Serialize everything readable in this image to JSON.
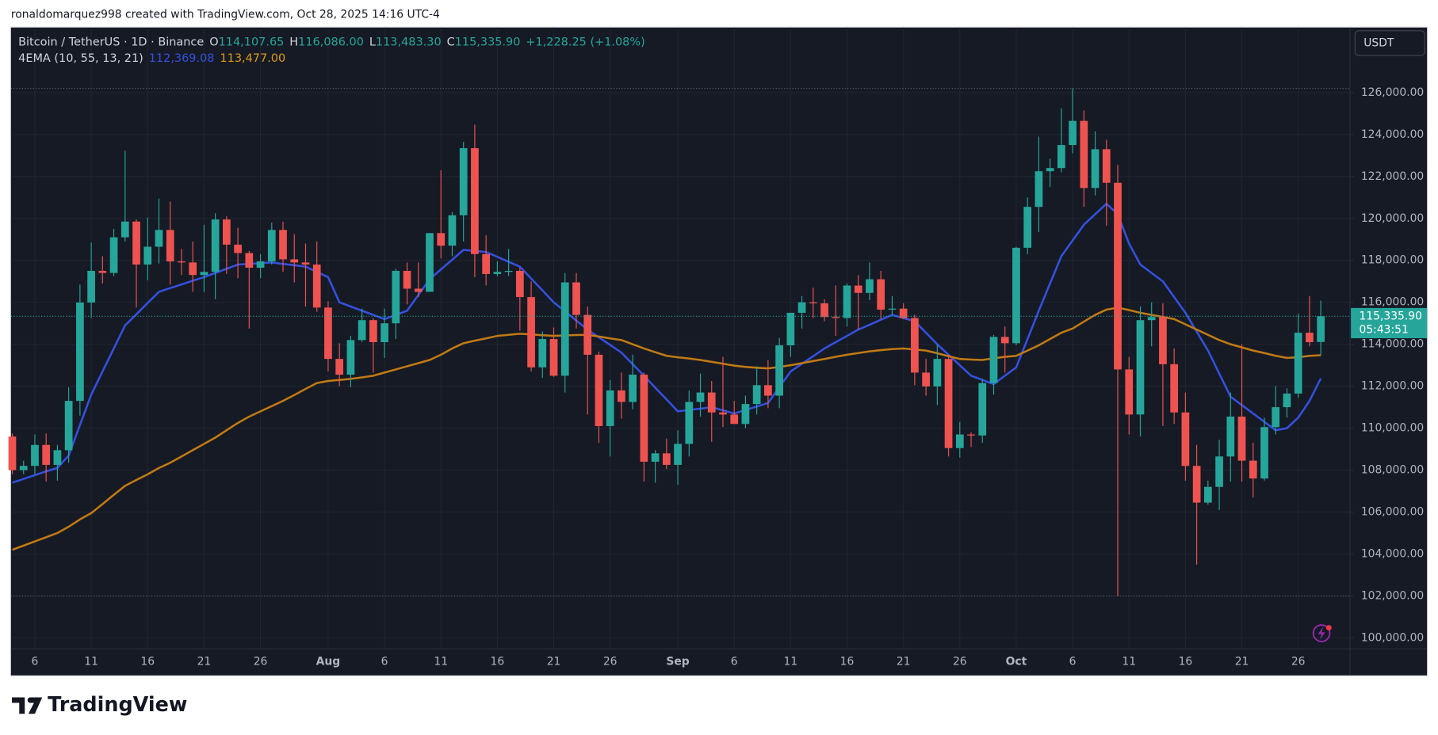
{
  "top_note": "ronaldomarquez998 created with TradingView.com, Oct 28, 2025 14:16 UTC-4",
  "header": {
    "symbol": "Bitcoin / TetherUS · 1D · Binance",
    "o_label": "O",
    "o": "114,107.65",
    "h_label": "H",
    "h": "116,086.00",
    "l_label": "L",
    "l": "113,483.30",
    "c_label": "C",
    "c": "115,335.90",
    "change": "+1,228.25 (+1.08%)"
  },
  "indicator": {
    "label": "4EMA (10, 55, 13, 21)",
    "values_text": [
      "112,369.08",
      "113,477.00"
    ]
  },
  "currency_button": "USDT",
  "last_price_label": "115,335.90",
  "countdown": "05:43:51",
  "footer": "TradingView",
  "chart_data": {
    "type": "candlestick",
    "up_color": "#26a69a",
    "down_color": "#ef5350",
    "grid": true,
    "x": [
      "2025-07-04",
      "2025-07-05",
      "2025-07-06",
      "2025-07-07",
      "2025-07-08",
      "2025-07-09",
      "2025-07-10",
      "2025-07-11",
      "2025-07-12",
      "2025-07-13",
      "2025-07-14",
      "2025-07-15",
      "2025-07-16",
      "2025-07-17",
      "2025-07-18",
      "2025-07-19",
      "2025-07-20",
      "2025-07-21",
      "2025-07-22",
      "2025-07-23",
      "2025-07-24",
      "2025-07-25",
      "2025-07-26",
      "2025-07-27",
      "2025-07-28",
      "2025-07-29",
      "2025-07-30",
      "2025-07-31",
      "2025-08-01",
      "2025-08-02",
      "2025-08-03",
      "2025-08-04",
      "2025-08-05",
      "2025-08-06",
      "2025-08-07",
      "2025-08-08",
      "2025-08-09",
      "2025-08-10",
      "2025-08-11",
      "2025-08-12",
      "2025-08-13",
      "2025-08-14",
      "2025-08-15",
      "2025-08-16",
      "2025-08-17",
      "2025-08-18",
      "2025-08-19",
      "2025-08-20",
      "2025-08-21",
      "2025-08-22",
      "2025-08-23",
      "2025-08-24",
      "2025-08-25",
      "2025-08-26",
      "2025-08-27",
      "2025-08-28",
      "2025-08-29",
      "2025-08-30",
      "2025-08-31",
      "2025-09-01",
      "2025-09-02",
      "2025-09-03",
      "2025-09-04",
      "2025-09-05",
      "2025-09-06",
      "2025-09-07",
      "2025-09-08",
      "2025-09-09",
      "2025-09-10",
      "2025-09-11",
      "2025-09-12",
      "2025-09-13",
      "2025-09-14",
      "2025-09-15",
      "2025-09-16",
      "2025-09-17",
      "2025-09-18",
      "2025-09-19",
      "2025-09-20",
      "2025-09-21",
      "2025-09-22",
      "2025-09-23",
      "2025-09-24",
      "2025-09-25",
      "2025-09-26",
      "2025-09-27",
      "2025-09-28",
      "2025-09-29",
      "2025-09-30",
      "2025-10-01",
      "2025-10-02",
      "2025-10-03",
      "2025-10-04",
      "2025-10-05",
      "2025-10-06",
      "2025-10-07",
      "2025-10-08",
      "2025-10-09",
      "2025-10-10",
      "2025-10-11",
      "2025-10-12",
      "2025-10-13",
      "2025-10-14",
      "2025-10-15",
      "2025-10-16",
      "2025-10-17",
      "2025-10-18",
      "2025-10-19",
      "2025-10-20",
      "2025-10-21",
      "2025-10-22",
      "2025-10-23",
      "2025-10-24",
      "2025-10-25",
      "2025-10-26",
      "2025-10-27",
      "2025-10-28"
    ],
    "open": [
      109600,
      108000,
      108200,
      109200,
      108250,
      108950,
      111300,
      115990,
      117500,
      117400,
      119100,
      119850,
      117800,
      118650,
      119450,
      117950,
      117900,
      117300,
      117450,
      119950,
      118750,
      118350,
      117650,
      117950,
      119450,
      118050,
      117900,
      117800,
      115750,
      113300,
      112550,
      114200,
      115150,
      114100,
      115000,
      117500,
      116650,
      116500,
      119300,
      118700,
      120150,
      123350,
      118300,
      117350,
      117450,
      117500,
      116250,
      112900,
      114250,
      112500,
      116950,
      115400,
      113500,
      110100,
      111800,
      111250,
      112550,
      108400,
      108800,
      108250,
      109250,
      111250,
      111700,
      110750,
      110650,
      110200,
      111150,
      112050,
      111550,
      113950,
      115500,
      116000,
      115950,
      115300,
      115250,
      116800,
      116450,
      117100,
      115650,
      115700,
      115250,
      112650,
      111990,
      113300,
      109050,
      109700,
      109650,
      112150,
      114350,
      114050,
      118600,
      120550,
      122250,
      122400,
      123500,
      124650,
      121450,
      123300,
      121700,
      112800,
      110650,
      115150,
      115300,
      113050,
      110750,
      108200,
      106450,
      107200,
      108650,
      110550,
      108450,
      107600,
      110050,
      111000,
      111650,
      114550,
      114107.65
    ],
    "high": [
      109750,
      108450,
      109700,
      109750,
      109200,
      111950,
      116850,
      118850,
      118200,
      119500,
      123220,
      119950,
      120050,
      120950,
      120800,
      118550,
      118900,
      119700,
      120250,
      120100,
      119550,
      118450,
      118300,
      119800,
      119850,
      119250,
      118800,
      118900,
      116050,
      114050,
      114400,
      115700,
      115250,
      115700,
      117600,
      117900,
      117900,
      119300,
      122300,
      120300,
      123650,
      124470,
      119200,
      117950,
      118550,
      117650,
      117000,
      114600,
      114800,
      117400,
      117400,
      115800,
      113650,
      112300,
      112650,
      113500,
      112650,
      108950,
      109500,
      109900,
      111800,
      112600,
      112250,
      113400,
      111300,
      111550,
      112950,
      113250,
      114300,
      115500,
      116300,
      116700,
      116150,
      116800,
      116900,
      117300,
      117900,
      117500,
      116300,
      115950,
      115400,
      113300,
      114000,
      113500,
      110300,
      109800,
      112350,
      114450,
      114850,
      118650,
      121000,
      123900,
      122850,
      125250,
      126200,
      125150,
      124150,
      123750,
      122550,
      113400,
      115800,
      116000,
      115950,
      113800,
      111700,
      109200,
      107500,
      109450,
      111700,
      114000,
      109300,
      110500,
      112000,
      111900,
      115450,
      116300,
      116086
    ],
    "low": [
      107800,
      107800,
      107800,
      107450,
      107500,
      108350,
      110600,
      115250,
      116900,
      117250,
      118900,
      115750,
      117050,
      117850,
      116850,
      117300,
      116500,
      116500,
      116150,
      117350,
      117150,
      114750,
      117150,
      117800,
      117450,
      116950,
      115800,
      115550,
      112700,
      112000,
      111950,
      114100,
      112650,
      113350,
      114250,
      115900,
      116250,
      116500,
      118100,
      118200,
      118900,
      117200,
      116800,
      117250,
      117250,
      114650,
      112700,
      112400,
      112450,
      111700,
      114750,
      110650,
      109300,
      108650,
      110450,
      110900,
      107450,
      107400,
      108050,
      107300,
      108650,
      110550,
      109350,
      110050,
      110200,
      110000,
      110650,
      110950,
      110950,
      113400,
      114750,
      115250,
      115100,
      114400,
      114850,
      114700,
      116100,
      115200,
      115400,
      115200,
      112050,
      111550,
      111100,
      108650,
      108600,
      109100,
      109300,
      111600,
      112650,
      113950,
      118300,
      119350,
      121500,
      122200,
      123100,
      120550,
      121100,
      119650,
      102000,
      109700,
      109600,
      113900,
      110100,
      110200,
      107500,
      103500,
      106350,
      106100,
      107450,
      107450,
      106700,
      107500,
      109700,
      110500,
      111450,
      113900,
      113483.3
    ],
    "close": [
      108000,
      108200,
      109200,
      108250,
      108950,
      111300,
      115990,
      117500,
      117400,
      119100,
      119850,
      117800,
      118650,
      119450,
      117950,
      117900,
      117300,
      117450,
      119950,
      118750,
      118350,
      117650,
      117950,
      119450,
      118050,
      117900,
      117800,
      115750,
      113300,
      112550,
      114200,
      115150,
      114100,
      115000,
      117500,
      116650,
      116500,
      119300,
      118700,
      120150,
      123350,
      118300,
      117350,
      117450,
      117500,
      116250,
      112900,
      114250,
      112500,
      116950,
      115400,
      113500,
      110100,
      111800,
      111250,
      112550,
      108400,
      108800,
      108250,
      109250,
      111250,
      111700,
      110750,
      110650,
      110200,
      111150,
      112050,
      111550,
      113950,
      115500,
      116000,
      115950,
      115300,
      115250,
      116800,
      116450,
      117100,
      115650,
      115700,
      115250,
      112650,
      111990,
      113300,
      109050,
      109700,
      109650,
      112150,
      114350,
      114050,
      118600,
      120550,
      122250,
      122400,
      123500,
      124650,
      121450,
      123300,
      121700,
      112800,
      110650,
      115150,
      115300,
      113050,
      110750,
      108200,
      106450,
      107200,
      108650,
      110550,
      108450,
      107600,
      110050,
      111000,
      111650,
      114550,
      114100,
      115335.9
    ],
    "lines": [
      {
        "color": "#3451e0",
        "values": [
          107400,
          107580,
          107760,
          107940,
          108100,
          108700,
          110150,
          111600,
          112700,
          113800,
          114900,
          115430,
          115970,
          116500,
          116680,
          116850,
          117030,
          117200,
          117400,
          117600,
          117800,
          117830,
          117870,
          117900,
          117830,
          117770,
          117700,
          117450,
          117200,
          116000,
          115800,
          115600,
          115400,
          115200,
          115400,
          115600,
          116350,
          117100,
          117570,
          118030,
          118500,
          118450,
          118400,
          118170,
          117930,
          117700,
          117130,
          116570,
          116000,
          115570,
          115130,
          114700,
          114330,
          113970,
          113600,
          113050,
          112500,
          111930,
          111370,
          110800,
          110870,
          110930,
          111000,
          110850,
          110700,
          110870,
          111030,
          111200,
          111950,
          112700,
          113070,
          113430,
          113800,
          114100,
          114400,
          114700,
          114930,
          115170,
          115400,
          115250,
          115100,
          114550,
          114000,
          113500,
          113000,
          112500,
          112300,
          112100,
          112500,
          112900,
          114250,
          115600,
          116900,
          118200,
          118950,
          119700,
          120200,
          120700,
          120200,
          118800,
          117800,
          117400,
          117000,
          116250,
          115500,
          114600,
          113700,
          112600,
          111500,
          111100,
          110700,
          110300,
          109900,
          110000,
          110500,
          111300,
          112369.08
        ]
      },
      {
        "color": "#c27a12",
        "values": [
          104200,
          104400,
          104600,
          104800,
          105000,
          105300,
          105650,
          105950,
          106380,
          106820,
          107250,
          107530,
          107800,
          108100,
          108350,
          108650,
          108950,
          109250,
          109550,
          109900,
          110250,
          110550,
          110800,
          111050,
          111300,
          111580,
          111870,
          112150,
          112250,
          112300,
          112350,
          112420,
          112500,
          112650,
          112800,
          112950,
          113100,
          113250,
          113500,
          113800,
          114050,
          114170,
          114280,
          114400,
          114450,
          114500,
          114470,
          114430,
          114400,
          114420,
          114440,
          114450,
          114370,
          114280,
          114200,
          114000,
          113800,
          113620,
          113450,
          113380,
          113320,
          113250,
          113160,
          113070,
          112980,
          112920,
          112880,
          112850,
          112920,
          113000,
          113100,
          113200,
          113300,
          113400,
          113500,
          113580,
          113660,
          113720,
          113770,
          113800,
          113750,
          113700,
          113570,
          113430,
          113300,
          113270,
          113250,
          113330,
          113400,
          113450,
          113700,
          113950,
          114250,
          114550,
          114750,
          115080,
          115400,
          115650,
          115750,
          115630,
          115500,
          115400,
          115300,
          115200,
          114950,
          114700,
          114450,
          114200,
          114000,
          113850,
          113700,
          113580,
          113450,
          113350,
          113380,
          113450,
          113477.0
        ]
      }
    ],
    "ylim": [
      99480,
      129100
    ],
    "yticks": [
      {
        "value": 100000,
        "label": "100,000.00"
      },
      {
        "value": 102000,
        "label": "102,000.00"
      },
      {
        "value": 104000,
        "label": "104,000.00"
      },
      {
        "value": 106000,
        "label": "106,000.00"
      },
      {
        "value": 108000,
        "label": "108,000.00"
      },
      {
        "value": 110000,
        "label": "110,000.00"
      },
      {
        "value": 112000,
        "label": "112,000.00"
      },
      {
        "value": 114000,
        "label": "114,000.00"
      },
      {
        "value": 116000,
        "label": "116,000.00"
      },
      {
        "value": 118000,
        "label": "118,000.00"
      },
      {
        "value": 120000,
        "label": "120,000.00"
      },
      {
        "value": 122000,
        "label": "122,000.00"
      },
      {
        "value": 124000,
        "label": "124,000.00"
      },
      {
        "value": 126000,
        "label": "126,000.00"
      }
    ],
    "xticks": [
      {
        "value": "2025-07-06",
        "label": "6"
      },
      {
        "value": "2025-07-11",
        "label": "11"
      },
      {
        "value": "2025-07-16",
        "label": "16"
      },
      {
        "value": "2025-07-21",
        "label": "21"
      },
      {
        "value": "2025-07-26",
        "label": "26"
      },
      {
        "value": "2025-08-01",
        "label": "Aug"
      },
      {
        "value": "2025-08-06",
        "label": "6"
      },
      {
        "value": "2025-08-11",
        "label": "11"
      },
      {
        "value": "2025-08-16",
        "label": "16"
      },
      {
        "value": "2025-08-21",
        "label": "21"
      },
      {
        "value": "2025-08-26",
        "label": "26"
      },
      {
        "value": "2025-09-01",
        "label": "Sep"
      },
      {
        "value": "2025-09-06",
        "label": "6"
      },
      {
        "value": "2025-09-11",
        "label": "11"
      },
      {
        "value": "2025-09-16",
        "label": "16"
      },
      {
        "value": "2025-09-21",
        "label": "21"
      },
      {
        "value": "2025-09-26",
        "label": "26"
      },
      {
        "value": "2025-10-01",
        "label": "Oct"
      },
      {
        "value": "2025-10-06",
        "label": "6"
      },
      {
        "value": "2025-10-11",
        "label": "11"
      },
      {
        "value": "2025-10-16",
        "label": "16"
      },
      {
        "value": "2025-10-21",
        "label": "21"
      },
      {
        "value": "2025-10-26",
        "label": "26"
      }
    ]
  }
}
